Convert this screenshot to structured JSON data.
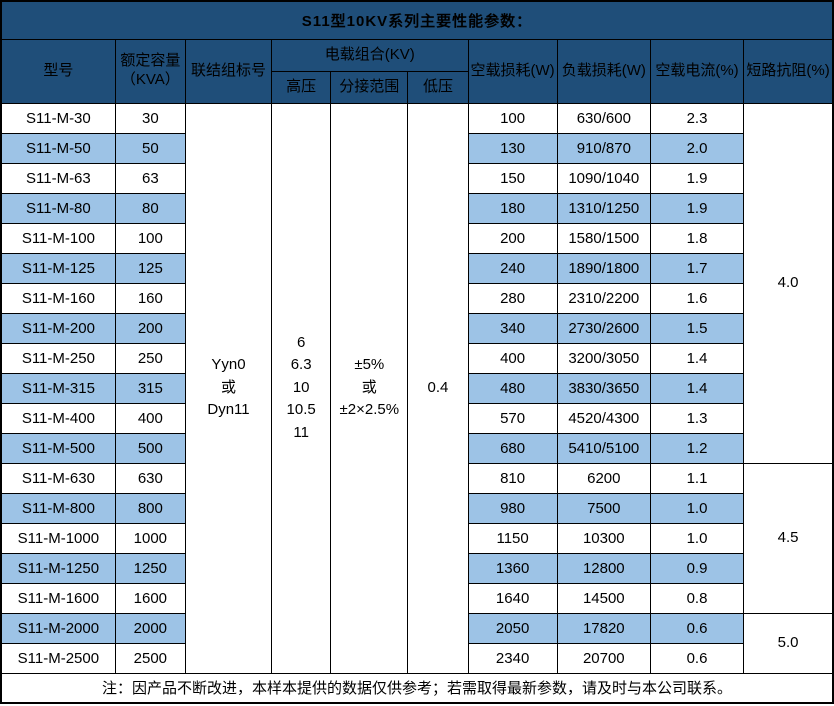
{
  "title": "S11型10KV系列主要性能参数：",
  "colors": {
    "header_bg": "#1f4e79",
    "header_text": "#ffffff",
    "stripe_bg": "#9dc3e6",
    "row_bg": "#ffffff",
    "border": "#000000"
  },
  "header": {
    "model": "型号",
    "capacity_line1": "额定容量",
    "capacity_line2": "（KVA）",
    "connection": "联结组标号",
    "load_combo": "电载组合(KV)",
    "hv": "高压",
    "tap_range": "分接范围",
    "lv": "低压",
    "no_load_loss": "空载损耗(W)",
    "load_loss": "负载损耗(W)",
    "no_load_current": "空载电流(%)",
    "impedance": "短路抗阻(%)"
  },
  "merged": {
    "connection_lines": [
      "Yyn0",
      "或",
      "Dyn11"
    ],
    "hv_lines": [
      "6",
      "6.3",
      "10",
      "10.5",
      "11"
    ],
    "tap_lines": [
      "±5%",
      "或",
      "±2×2.5%"
    ],
    "lv_lines": [
      "0.4"
    ]
  },
  "impedance_groups": [
    {
      "start": 0,
      "span": 12,
      "value": "4.0"
    },
    {
      "start": 12,
      "span": 5,
      "value": "4.5"
    },
    {
      "start": 17,
      "span": 2,
      "value": "5.0"
    }
  ],
  "rows": [
    {
      "model": "S11-M-30",
      "capacity": "30",
      "no_load_loss": "100",
      "load_loss": "630/600",
      "no_load_current": "2.3"
    },
    {
      "model": "S11-M-50",
      "capacity": "50",
      "no_load_loss": "130",
      "load_loss": "910/870",
      "no_load_current": "2.0"
    },
    {
      "model": "S11-M-63",
      "capacity": "63",
      "no_load_loss": "150",
      "load_loss": "1090/1040",
      "no_load_current": "1.9"
    },
    {
      "model": "S11-M-80",
      "capacity": "80",
      "no_load_loss": "180",
      "load_loss": "1310/1250",
      "no_load_current": "1.9"
    },
    {
      "model": "S11-M-100",
      "capacity": "100",
      "no_load_loss": "200",
      "load_loss": "1580/1500",
      "no_load_current": "1.8"
    },
    {
      "model": "S11-M-125",
      "capacity": "125",
      "no_load_loss": "240",
      "load_loss": "1890/1800",
      "no_load_current": "1.7"
    },
    {
      "model": "S11-M-160",
      "capacity": "160",
      "no_load_loss": "280",
      "load_loss": "2310/2200",
      "no_load_current": "1.6"
    },
    {
      "model": "S11-M-200",
      "capacity": "200",
      "no_load_loss": "340",
      "load_loss": "2730/2600",
      "no_load_current": "1.5"
    },
    {
      "model": "S11-M-250",
      "capacity": "250",
      "no_load_loss": "400",
      "load_loss": "3200/3050",
      "no_load_current": "1.4"
    },
    {
      "model": "S11-M-315",
      "capacity": "315",
      "no_load_loss": "480",
      "load_loss": "3830/3650",
      "no_load_current": "1.4"
    },
    {
      "model": "S11-M-400",
      "capacity": "400",
      "no_load_loss": "570",
      "load_loss": "4520/4300",
      "no_load_current": "1.3"
    },
    {
      "model": "S11-M-500",
      "capacity": "500",
      "no_load_loss": "680",
      "load_loss": "5410/5100",
      "no_load_current": "1.2"
    },
    {
      "model": "S11-M-630",
      "capacity": "630",
      "no_load_loss": "810",
      "load_loss": "6200",
      "no_load_current": "1.1"
    },
    {
      "model": "S11-M-800",
      "capacity": "800",
      "no_load_loss": "980",
      "load_loss": "7500",
      "no_load_current": "1.0"
    },
    {
      "model": "S11-M-1000",
      "capacity": "1000",
      "no_load_loss": "1150",
      "load_loss": "10300",
      "no_load_current": "1.0"
    },
    {
      "model": "S11-M-1250",
      "capacity": "1250",
      "no_load_loss": "1360",
      "load_loss": "12800",
      "no_load_current": "0.9"
    },
    {
      "model": "S11-M-1600",
      "capacity": "1600",
      "no_load_loss": "1640",
      "load_loss": "14500",
      "no_load_current": "0.8"
    },
    {
      "model": "S11-M-2000",
      "capacity": "2000",
      "no_load_loss": "2050",
      "load_loss": "17820",
      "no_load_current": "0.6"
    },
    {
      "model": "S11-M-2500",
      "capacity": "2500",
      "no_load_loss": "2340",
      "load_loss": "20700",
      "no_load_current": "0.6"
    }
  ],
  "footer": "注：因产品不断改进，本样本提供的数据仅供参考；若需取得最新参数，请及时与本公司联系。"
}
